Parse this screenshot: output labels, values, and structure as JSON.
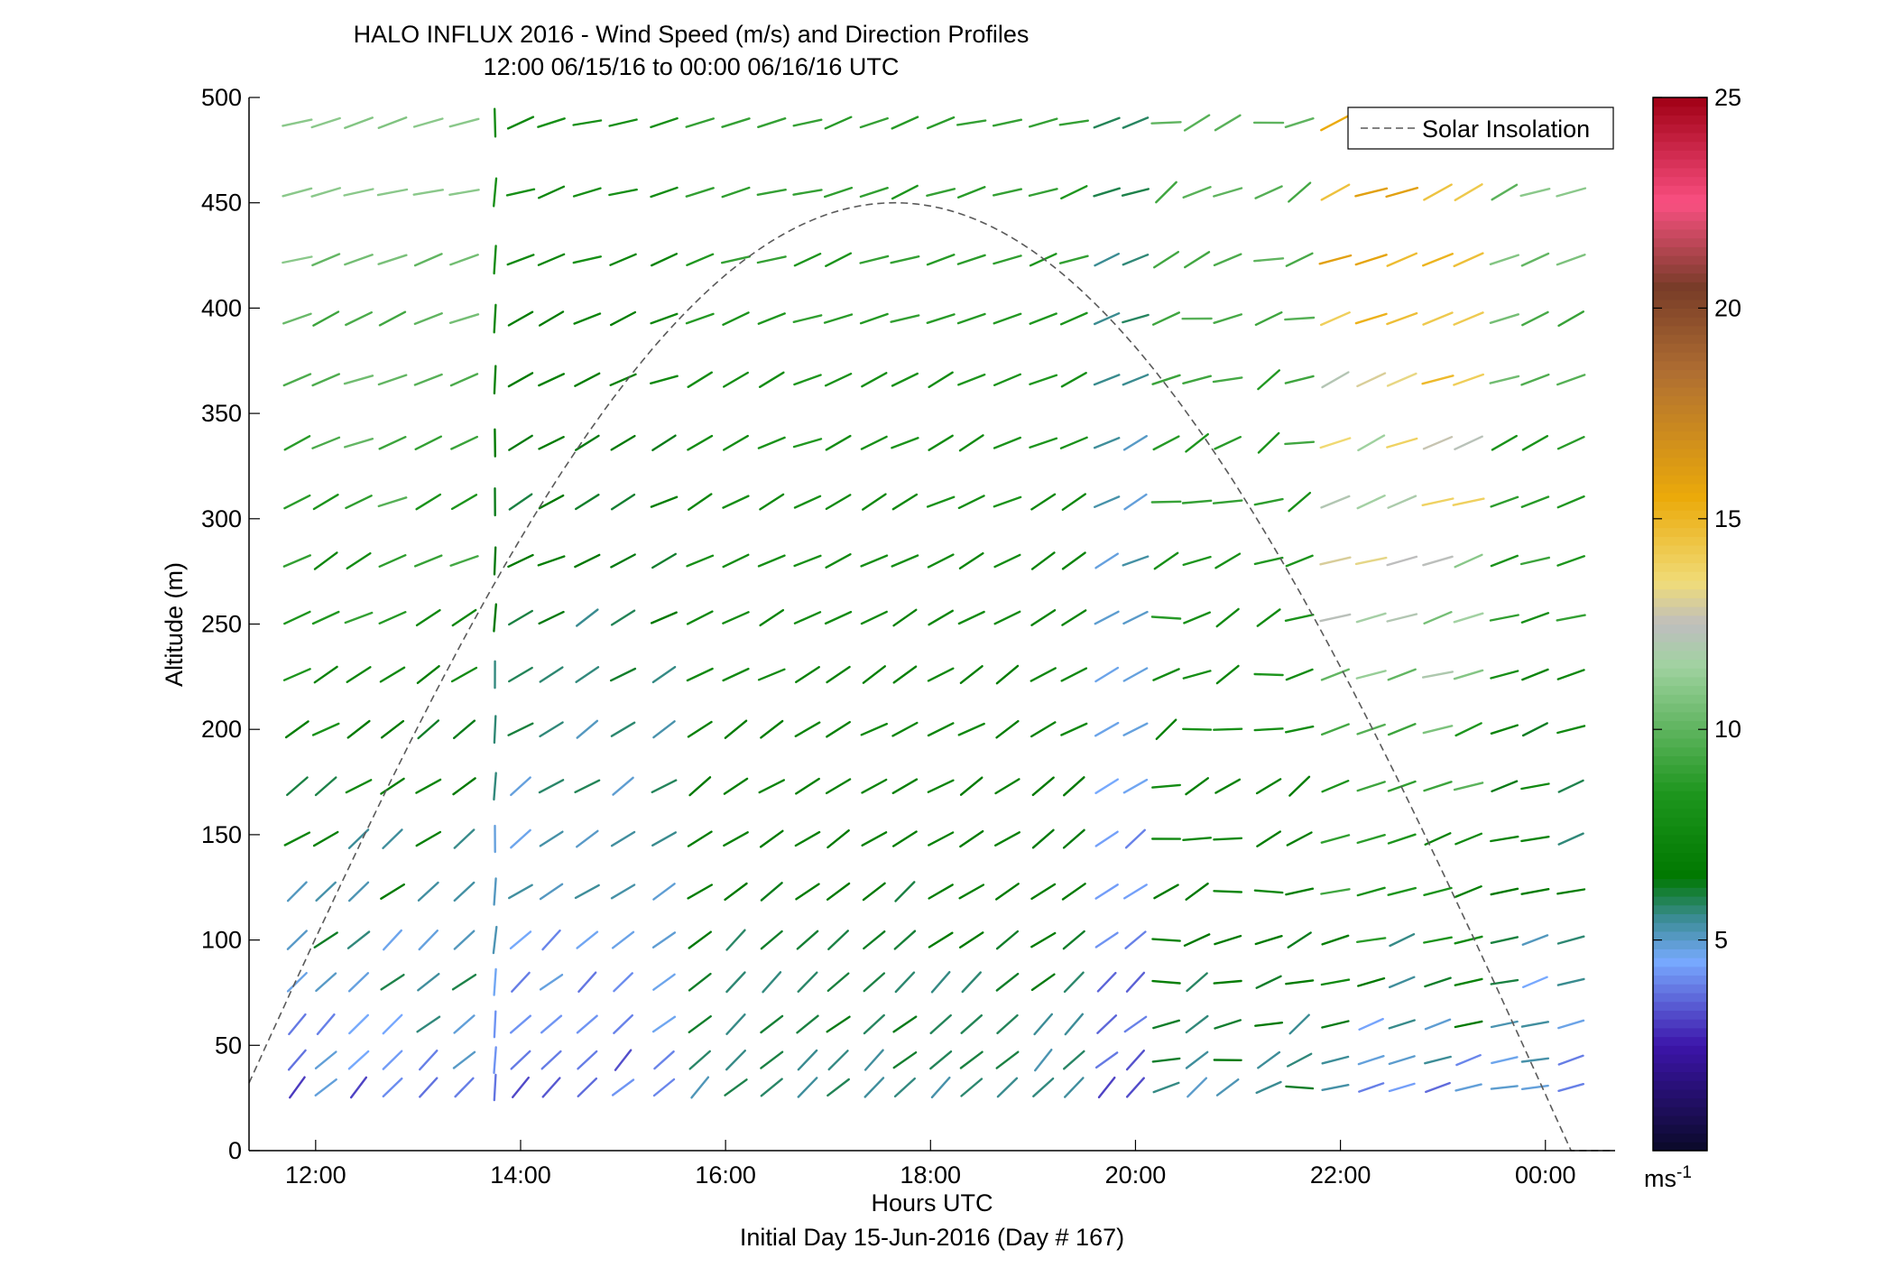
{
  "chart_data": {
    "type": "wind-barb",
    "title": "HALO INFLUX 2016 - Wind Speed (m/s) and Direction Profiles",
    "subtitle": "12:00 06/15/16 to 00:00 06/16/16  UTC",
    "xlabel": "Hours UTC",
    "xlabel2": "Initial Day 15-Jun-2016 (Day # 167)",
    "ylabel": "Altitude (m)",
    "x_tick_labels": [
      "12:00",
      "14:00",
      "16:00",
      "18:00",
      "20:00",
      "22:00",
      "00:00"
    ],
    "x_tick_hours": [
      12,
      14,
      16,
      18,
      20,
      22,
      24
    ],
    "xlim_hours": [
      11.35,
      24.68
    ],
    "y_ticks": [
      0,
      50,
      100,
      150,
      200,
      250,
      300,
      350,
      400,
      450,
      500
    ],
    "ylim": [
      0,
      500
    ],
    "colorbar": {
      "ticks": [
        5,
        10,
        15,
        20,
        25
      ],
      "range": [
        0,
        25
      ],
      "unit": "ms",
      "unit_exponent": "-1"
    },
    "legend": {
      "label": "Solar Insolation",
      "position": "top-right"
    },
    "solar_insolation": {
      "peak_hour": 17.65,
      "peak_altitude": 450,
      "half_width_hours": 6.6
    },
    "grid": false,
    "profile_times_hours": [
      11.82,
      12.1,
      12.42,
      12.75,
      13.1,
      13.45,
      13.75,
      14.0,
      14.3,
      14.65,
      15.0,
      15.4,
      15.75,
      16.1,
      16.45,
      16.8,
      17.1,
      17.45,
      17.75,
      18.1,
      18.4,
      18.75,
      19.1,
      19.4,
      19.72,
      20.0,
      20.3,
      20.6,
      20.9,
      21.3,
      21.6,
      21.95,
      22.3,
      22.6,
      22.95,
      23.25,
      23.6,
      23.9,
      24.25
    ],
    "profile_altitudes": [
      30,
      43,
      60,
      80,
      100,
      123,
      148,
      173,
      200,
      226,
      253,
      280,
      308,
      336,
      366,
      395,
      423,
      455,
      488
    ],
    "speed_by_period": [
      {
        "from": 11.8,
        "to": 13.5,
        "speed_low": 3,
        "speed_high": 11
      },
      {
        "from": 13.7,
        "to": 15.5,
        "speed_low": 3,
        "speed_high": 8
      },
      {
        "from": 15.5,
        "to": 19.5,
        "speed_low": 5,
        "speed_high": 9
      },
      {
        "from": 19.5,
        "to": 20.1,
        "speed_low": 3,
        "speed_high": 6
      },
      {
        "from": 20.1,
        "to": 21.8,
        "speed_low": 5,
        "speed_high": 10
      },
      {
        "from": 21.8,
        "to": 23.3,
        "speed_low": 3,
        "speed_high": 16
      },
      {
        "from": 23.3,
        "to": 24.3,
        "speed_low": 3,
        "speed_high": 11
      }
    ]
  }
}
